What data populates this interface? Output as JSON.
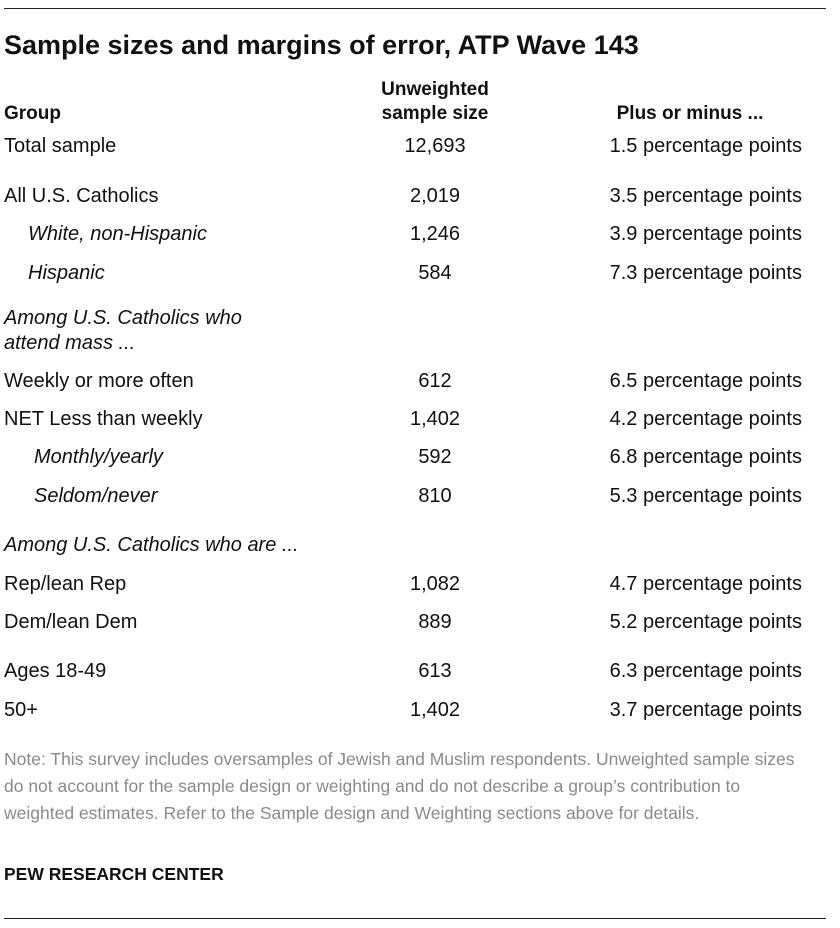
{
  "title": "Sample sizes and margins of error, ATP Wave 143",
  "headers": {
    "group": "Group",
    "size_line1": "Unweighted",
    "size_line2": "sample size",
    "moe": "Plus or minus ..."
  },
  "rows": [
    {
      "label": "Total sample",
      "size": "12,693",
      "moe": "1.5 percentage points"
    },
    {
      "label": "All U.S. Catholics",
      "size": "2,019",
      "moe": "3.5 percentage points"
    },
    {
      "label": "White, non-Hispanic",
      "size": "1,246",
      "moe": "3.9 percentage points"
    },
    {
      "label": "Hispanic",
      "size": "584",
      "moe": "7.3 percentage points"
    },
    {
      "label": "Weekly or more often",
      "size": "612",
      "moe": "6.5 percentage points"
    },
    {
      "label": "NET Less than weekly",
      "size": "1,402",
      "moe": "4.2 percentage points"
    },
    {
      "label": "Monthly/yearly",
      "size": "592",
      "moe": "6.8 percentage points"
    },
    {
      "label": "Seldom/never",
      "size": "810",
      "moe": "5.3 percentage points"
    },
    {
      "label": "Rep/lean Rep",
      "size": "1,082",
      "moe": "4.7 percentage points"
    },
    {
      "label": "Dem/lean Dem",
      "size": "889",
      "moe": "5.2 percentage points"
    },
    {
      "label": "Ages 18-49",
      "size": "613",
      "moe": "6.3 percentage points"
    },
    {
      "label": "50+",
      "size": "1,402",
      "moe": "3.7 percentage points"
    }
  ],
  "subheads": {
    "mass_line1": "Among U.S. Catholics who",
    "mass_line2": "attend mass ...",
    "party": "Among U.S. Catholics who are ..."
  },
  "note": "Note: This survey includes oversamples of Jewish and Muslim respondents. Unweighted sample sizes do not account for the sample design or weighting and do not describe a group’s contribution to weighted estimates. Refer to the Sample design and Weighting sections above for details.",
  "source": "PEW RESEARCH CENTER"
}
